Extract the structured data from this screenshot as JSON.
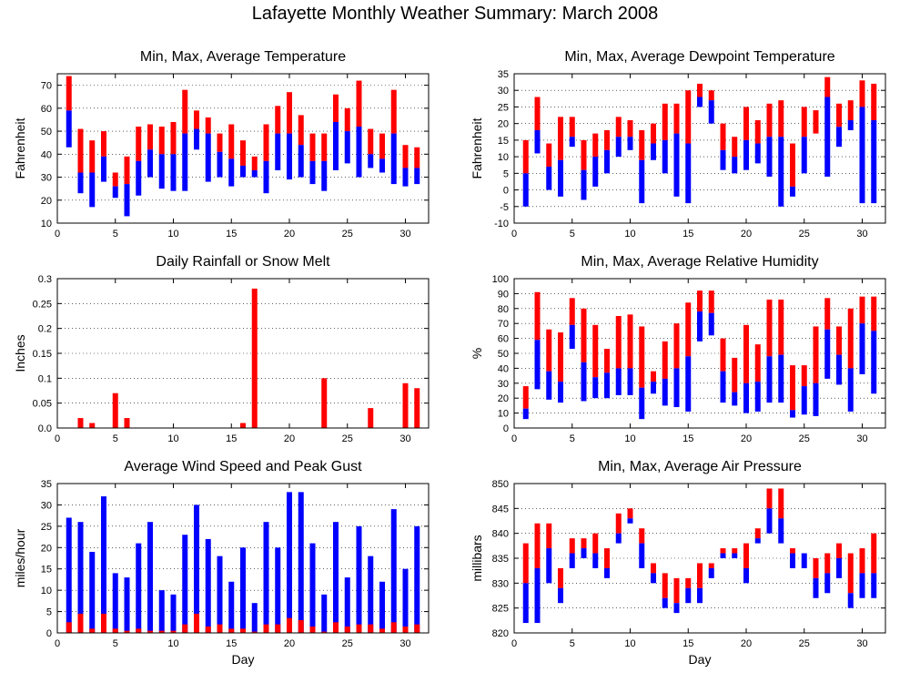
{
  "title": "Lafayette Monthly Weather Summary: March 2008",
  "colors": {
    "red": "#ff0000",
    "blue": "#0000ff",
    "grid": "#000000"
  },
  "chart_data": [
    {
      "type": "bar",
      "title": "Min, Max, Average Temperature",
      "xlabel": "",
      "ylabel": "Fahrenheit",
      "xlim": [
        0,
        32
      ],
      "ylim": [
        10,
        75
      ],
      "xticks": [
        0,
        5,
        10,
        15,
        20,
        25,
        30
      ],
      "yticks": [
        10,
        20,
        30,
        40,
        50,
        60,
        70
      ],
      "grid": true,
      "days": [
        1,
        2,
        3,
        4,
        5,
        6,
        7,
        8,
        9,
        10,
        11,
        12,
        13,
        14,
        15,
        16,
        17,
        18,
        19,
        20,
        21,
        22,
        23,
        24,
        25,
        26,
        27,
        28,
        29,
        30,
        31
      ],
      "min": [
        43,
        23,
        17,
        28,
        21,
        13,
        22,
        30,
        25,
        24,
        24,
        42,
        28,
        30,
        26,
        30,
        30,
        23,
        33,
        29,
        30,
        27,
        24,
        33,
        36,
        30,
        34,
        32,
        27,
        26,
        27
      ],
      "avg": [
        59,
        32,
        32,
        39,
        26,
        27,
        37,
        42,
        40,
        40,
        49,
        51,
        49,
        41,
        38,
        35,
        33,
        37,
        49,
        49,
        44,
        37,
        37,
        54,
        50,
        52,
        40,
        38,
        49,
        34,
        34
      ],
      "max": [
        74,
        51,
        46,
        50,
        32,
        39,
        52,
        53,
        52,
        54,
        68,
        59,
        56,
        49,
        53,
        46,
        39,
        53,
        61,
        67,
        57,
        49,
        49,
        66,
        60,
        72,
        51,
        49,
        68,
        44,
        43
      ]
    },
    {
      "type": "bar",
      "title": "Min, Max, Average Dewpoint Temperature",
      "xlabel": "",
      "ylabel": "Fahrenheit",
      "xlim": [
        0,
        32
      ],
      "ylim": [
        -10,
        35
      ],
      "xticks": [
        0,
        5,
        10,
        15,
        20,
        25,
        30
      ],
      "yticks": [
        -10,
        -5,
        0,
        5,
        10,
        15,
        20,
        25,
        30,
        35
      ],
      "grid": true,
      "days": [
        1,
        2,
        3,
        4,
        5,
        6,
        7,
        8,
        9,
        10,
        11,
        12,
        13,
        14,
        15,
        16,
        17,
        18,
        19,
        20,
        21,
        22,
        23,
        24,
        25,
        26,
        27,
        28,
        29,
        30,
        31
      ],
      "min": [
        -5,
        11,
        0,
        -2,
        13,
        -3,
        1,
        5,
        10,
        12,
        -4,
        9,
        5,
        -2,
        -4,
        25,
        20,
        6,
        5,
        6,
        8,
        4,
        -5,
        -2,
        5,
        23,
        4,
        13,
        18,
        -4,
        -4
      ],
      "avg": [
        5,
        18,
        7,
        9,
        16,
        6,
        10,
        12,
        16,
        16,
        9,
        14,
        15,
        17,
        14,
        28,
        27,
        12,
        10,
        15,
        14,
        16,
        16,
        1,
        16,
        17,
        28,
        19,
        21,
        25,
        21
      ],
      "max": [
        15,
        28,
        14,
        22,
        22,
        15,
        17,
        18,
        22,
        21,
        18,
        20,
        26,
        26,
        30,
        32,
        30,
        20,
        16,
        25,
        21,
        26,
        27,
        14,
        25,
        24,
        34,
        26,
        27,
        33,
        32
      ]
    },
    {
      "type": "bar",
      "title": "Daily Rainfall or Snow Melt",
      "xlabel": "",
      "ylabel": "Inches",
      "xlim": [
        0,
        32
      ],
      "ylim": [
        0,
        0.3
      ],
      "xticks": [
        0,
        5,
        10,
        15,
        20,
        25,
        30
      ],
      "yticks": [
        0,
        0.05,
        0.1,
        0.15,
        0.2,
        0.25,
        0.3
      ],
      "ytick_labels": [
        "0.0",
        "0.05",
        "0.1",
        "0.15",
        "0.2",
        "0.25",
        "0.3"
      ],
      "grid": true,
      "days": [
        1,
        2,
        3,
        4,
        5,
        6,
        7,
        8,
        9,
        10,
        11,
        12,
        13,
        14,
        15,
        16,
        17,
        18,
        19,
        20,
        21,
        22,
        23,
        24,
        25,
        26,
        27,
        28,
        29,
        30,
        31
      ],
      "rain": [
        0,
        0.02,
        0.01,
        0,
        0.07,
        0.02,
        0,
        0,
        0,
        0,
        0,
        0,
        0,
        0,
        0,
        0.01,
        0.28,
        0,
        0,
        0,
        0,
        0,
        0.1,
        0,
        0,
        0,
        0.04,
        0,
        0,
        0.09,
        0.08
      ]
    },
    {
      "type": "bar",
      "title": "Min, Max, Average Relative Humidity",
      "xlabel": "",
      "ylabel": "%",
      "xlim": [
        0,
        32
      ],
      "ylim": [
        0,
        100
      ],
      "xticks": [
        0,
        5,
        10,
        15,
        20,
        25,
        30
      ],
      "yticks": [
        0,
        10,
        20,
        30,
        40,
        50,
        60,
        70,
        80,
        90,
        100
      ],
      "grid": true,
      "days": [
        1,
        2,
        3,
        4,
        5,
        6,
        7,
        8,
        9,
        10,
        11,
        12,
        13,
        14,
        15,
        16,
        17,
        18,
        19,
        20,
        21,
        22,
        23,
        24,
        25,
        26,
        27,
        28,
        29,
        30,
        31
      ],
      "min": [
        6,
        26,
        19,
        17,
        53,
        18,
        20,
        20,
        22,
        22,
        6,
        23,
        15,
        14,
        11,
        58,
        62,
        17,
        15,
        10,
        11,
        17,
        17,
        7,
        9,
        8,
        33,
        29,
        11,
        36,
        23
      ],
      "avg": [
        13,
        59,
        38,
        31,
        69,
        44,
        34,
        37,
        40,
        40,
        27,
        31,
        33,
        40,
        48,
        78,
        77,
        38,
        24,
        30,
        31,
        48,
        49,
        12,
        28,
        30,
        66,
        49,
        40,
        70,
        65
      ],
      "max": [
        28,
        91,
        66,
        64,
        87,
        80,
        69,
        53,
        75,
        76,
        68,
        38,
        58,
        70,
        84,
        92,
        92,
        60,
        47,
        69,
        56,
        86,
        86,
        42,
        42,
        68,
        87,
        68,
        80,
        88,
        88
      ]
    },
    {
      "type": "bar",
      "title": "Average Wind Speed and Peak Gust",
      "xlabel": "Day",
      "ylabel": "miles/hour",
      "xlim": [
        0,
        32
      ],
      "ylim": [
        0,
        35
      ],
      "xticks": [
        0,
        5,
        10,
        15,
        20,
        25,
        30
      ],
      "yticks": [
        0,
        5,
        10,
        15,
        20,
        25,
        30,
        35
      ],
      "grid": true,
      "days": [
        1,
        2,
        3,
        4,
        5,
        6,
        7,
        8,
        9,
        10,
        11,
        12,
        13,
        14,
        15,
        16,
        17,
        18,
        19,
        20,
        21,
        22,
        23,
        24,
        25,
        26,
        27,
        28,
        29,
        30,
        31
      ],
      "average": [
        2.5,
        4.5,
        1,
        4.5,
        1,
        0.5,
        1,
        0.5,
        0.5,
        0.5,
        2,
        4.5,
        1.5,
        2,
        1,
        1,
        0.3,
        2,
        2,
        3.5,
        3,
        1.5,
        0.3,
        2.5,
        1.5,
        2,
        2,
        1,
        2.5,
        1.5,
        2
      ],
      "gust": [
        27,
        26,
        19,
        32,
        14,
        13,
        21,
        26,
        10,
        9,
        23,
        30,
        22,
        18,
        12,
        20,
        7,
        26,
        20,
        33,
        33,
        21,
        9,
        26,
        13,
        25,
        18,
        12,
        29,
        15,
        25
      ]
    },
    {
      "type": "bar",
      "title": "Min, Max, Average Air Pressure",
      "xlabel": "Day",
      "ylabel": "millibars",
      "xlim": [
        0,
        32
      ],
      "ylim": [
        820,
        850
      ],
      "xticks": [
        0,
        5,
        10,
        15,
        20,
        25,
        30
      ],
      "yticks": [
        820,
        825,
        830,
        835,
        840,
        845,
        850
      ],
      "grid": true,
      "days": [
        1,
        2,
        3,
        4,
        5,
        6,
        7,
        8,
        9,
        10,
        11,
        12,
        13,
        14,
        15,
        16,
        17,
        18,
        19,
        20,
        21,
        22,
        23,
        24,
        25,
        26,
        27,
        28,
        29,
        30,
        31
      ],
      "min": [
        822,
        822,
        830,
        826,
        833,
        835,
        833,
        831,
        838,
        842,
        833,
        830,
        825,
        824,
        826,
        826,
        831,
        835,
        835,
        830,
        838,
        840,
        838,
        833,
        833,
        827,
        828,
        831,
        825,
        827,
        827
      ],
      "avg": [
        830,
        833,
        837,
        829,
        836,
        837,
        836,
        833,
        840,
        843,
        838,
        832,
        827,
        826,
        829,
        829,
        833,
        836,
        836,
        833,
        839,
        845,
        843,
        836,
        836,
        831,
        832,
        835,
        828,
        832,
        832
      ],
      "max": [
        838,
        842,
        842,
        833,
        839,
        839,
        840,
        837,
        844,
        845,
        841,
        834,
        832,
        831,
        831,
        834,
        834,
        837,
        837,
        838,
        841,
        849,
        849,
        837,
        836,
        835,
        836,
        838,
        836,
        837,
        840
      ]
    }
  ]
}
